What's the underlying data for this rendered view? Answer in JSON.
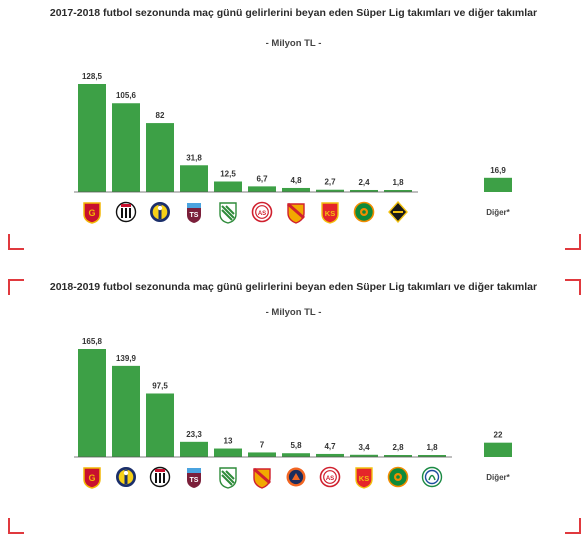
{
  "accent_color": "#3da046",
  "corner_color": "#e0393e",
  "chart_data": [
    {
      "type": "bar",
      "title": "2017-2018 futbol sezonunda maç günü gelirlerini beyan eden Süper Lig takımları ve diğer takımlar",
      "subtitle": "- Milyon TL -",
      "categories": [
        "Galatasaray",
        "Beşiktaş",
        "Fenerbahçe",
        "Trabzonspor",
        "Bursaspor",
        "Antalyaspor",
        "Göztepe",
        "Kayserispor",
        "Alanyaspor",
        "Yeni Malatyaspor",
        "Diğer*"
      ],
      "value_labels": [
        "128,5",
        "105,6",
        "82",
        "31,8",
        "12,5",
        "6,7",
        "4,8",
        "2,7",
        "2,4",
        "1,8",
        "16,9"
      ],
      "values": [
        128.5,
        105.6,
        82,
        31.8,
        12.5,
        6.7,
        4.8,
        2.7,
        2.4,
        1.8,
        16.9
      ],
      "other_label": "Diğer*",
      "logos": [
        "galatasaray",
        "besiktas",
        "fenerbahce",
        "trabzonspor",
        "bursaspor",
        "antalyaspor",
        "goztepe",
        "kayserispor",
        "alanyaspor",
        "malatyaspor"
      ]
    },
    {
      "type": "bar",
      "title": "2018-2019 futbol sezonunda maç günü gelirlerini beyan eden Süper Lig takımları ve diğer takımlar",
      "subtitle": "- Milyon TL -",
      "categories": [
        "Galatasaray",
        "Fenerbahçe",
        "Beşiktaş",
        "Trabzonspor",
        "Bursaspor",
        "Göztepe",
        "Başakşehir",
        "Antalyaspor",
        "Kayserispor",
        "Alanyaspor",
        "Rizespor",
        "Diğer*"
      ],
      "value_labels": [
        "165,8",
        "139,9",
        "97,5",
        "23,3",
        "13",
        "7",
        "5,8",
        "4,7",
        "3,4",
        "2,8",
        "1,8",
        "22"
      ],
      "values": [
        165.8,
        139.9,
        97.5,
        23.3,
        13,
        7,
        5.8,
        4.7,
        3.4,
        2.8,
        1.8,
        22
      ],
      "other_label": "Diğer*",
      "logos": [
        "galatasaray",
        "fenerbahce",
        "besiktas",
        "trabzonspor",
        "bursaspor",
        "goztepe",
        "basaksehir",
        "antalyaspor",
        "kayserispor",
        "alanyaspor",
        "rizespor"
      ]
    }
  ]
}
